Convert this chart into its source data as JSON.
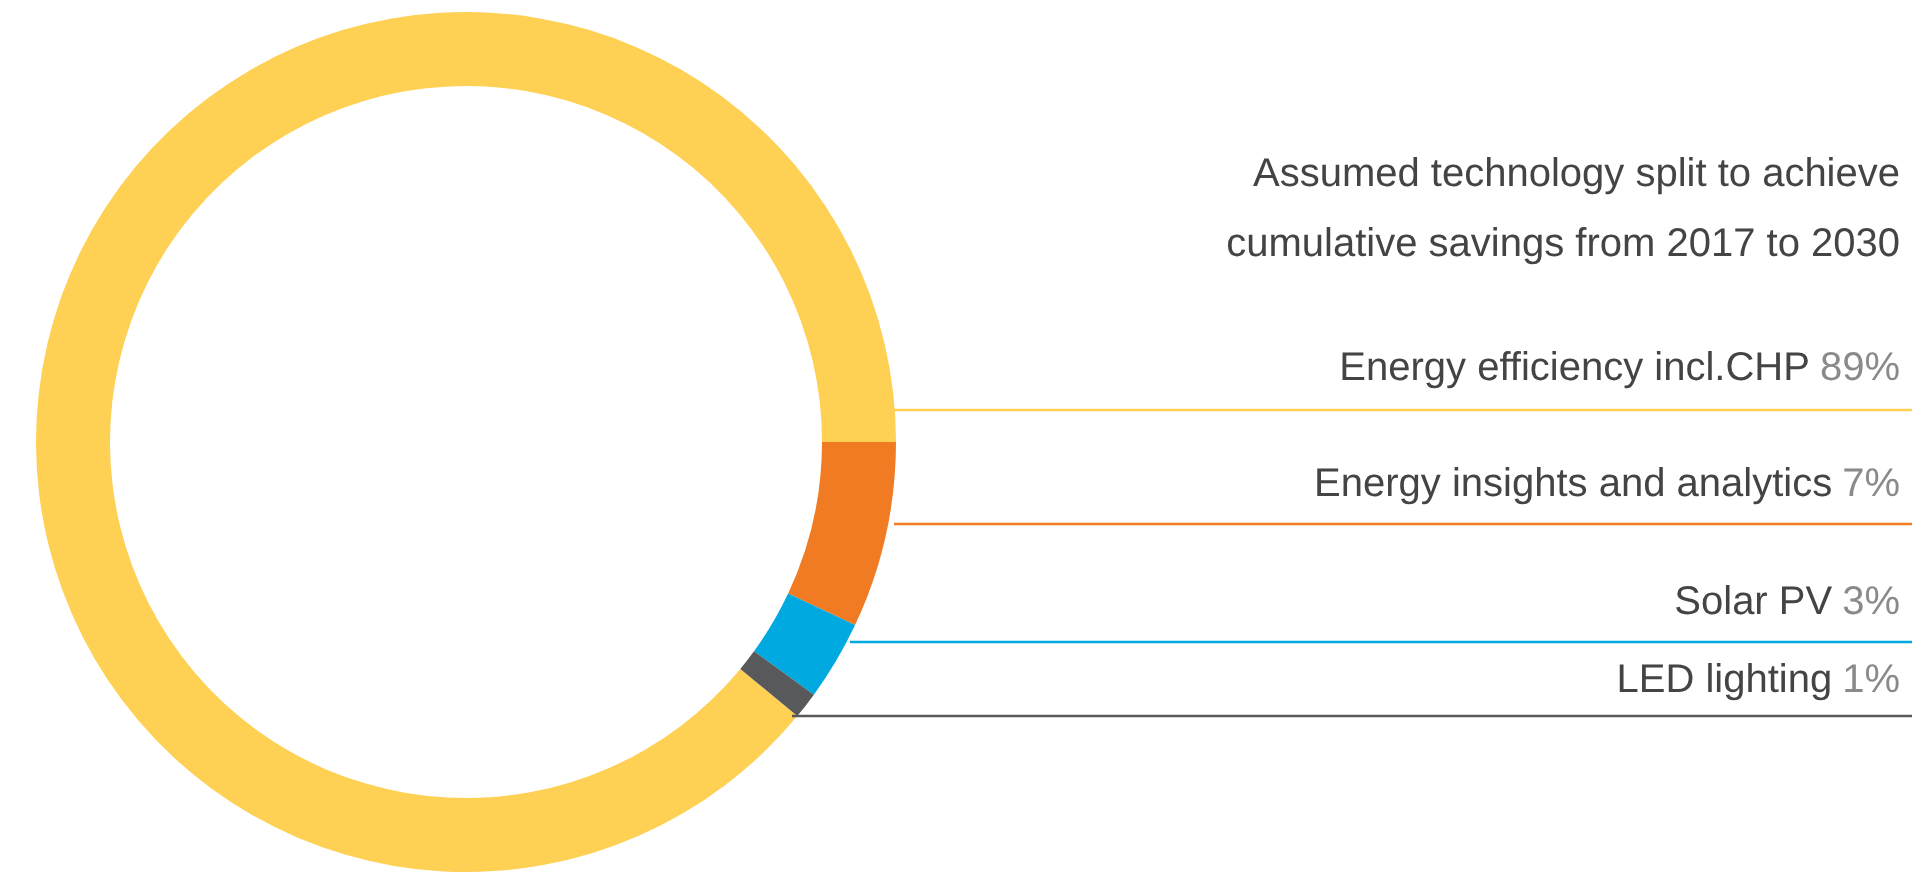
{
  "chart_data": {
    "type": "donut",
    "title": "Assumed technology split to achieve cumulative savings from 2017 to 2030",
    "categories": [
      "Energy efficiency incl.CHP",
      "Energy insights and analytics",
      "Solar PV",
      "LED lighting"
    ],
    "values": [
      89,
      7,
      3,
      1
    ],
    "value_labels": [
      "89%",
      "7%",
      "3%",
      "1%"
    ],
    "colors": [
      "#fed053",
      "#f07b23",
      "#00a9e0",
      "#58595b"
    ]
  }
}
